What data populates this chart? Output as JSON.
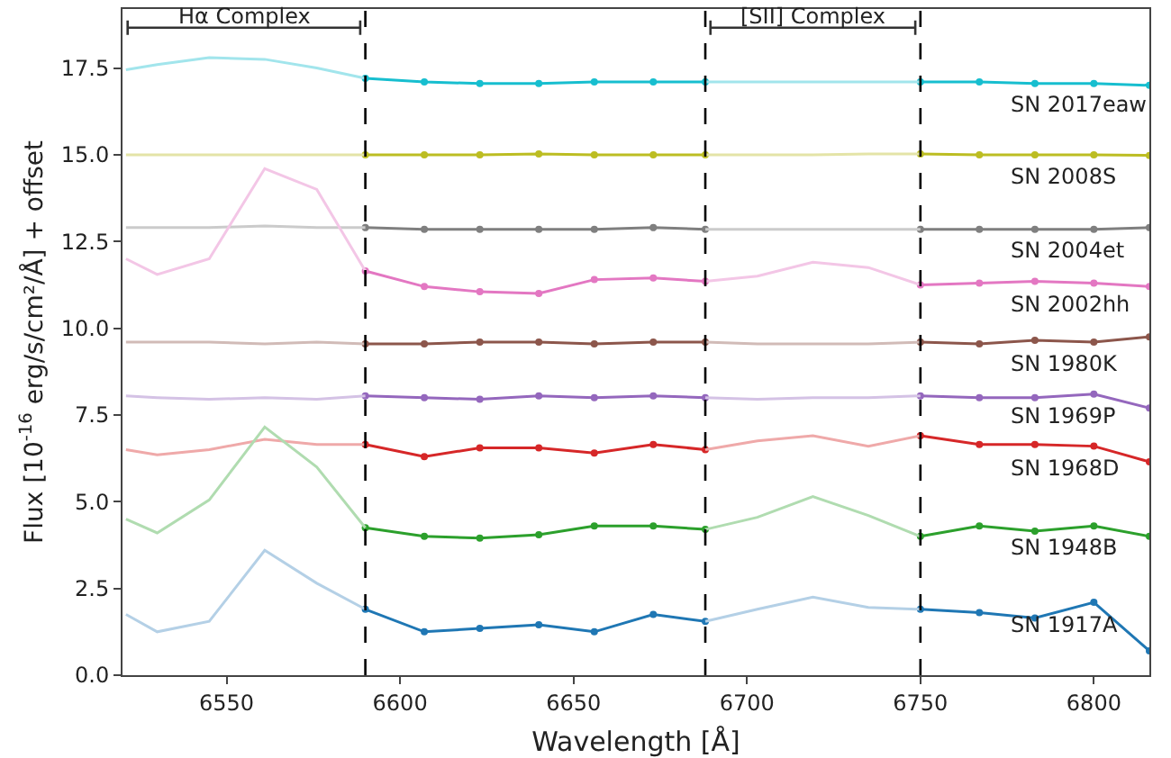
{
  "chart_data": {
    "type": "line",
    "xlabel": "Wavelength [Å]",
    "ylabel": "Flux [10$^{-16}$ erg/s/cm²/Å] + offset",
    "x": [
      6521,
      6530,
      6545,
      6561,
      6576,
      6590,
      6607,
      6623,
      6640,
      6656,
      6673,
      6688,
      6703,
      6719,
      6735,
      6750,
      6767,
      6783,
      6800,
      6816
    ],
    "xlim": [
      6520,
      6816
    ],
    "xticks": [
      6550,
      6600,
      6650,
      6700,
      6750,
      6800
    ],
    "ylim": [
      0,
      19.2
    ],
    "yticks": [
      {
        "value": 0,
        "label": "0.0"
      },
      {
        "value": 2.5,
        "label": "2.5"
      },
      {
        "value": 5,
        "label": "5.0"
      },
      {
        "value": 7.5,
        "label": "7.5"
      },
      {
        "value": 10,
        "label": "10.0"
      },
      {
        "value": 12.5,
        "label": "12.5"
      },
      {
        "value": 15,
        "label": "15.0"
      },
      {
        "value": 17.5,
        "label": "17.5"
      }
    ],
    "grid": false,
    "legend": false,
    "line_style": "solid",
    "series": [
      {
        "name": "SN 2017eaw",
        "color": "#17becf",
        "marker": "circle",
        "values": [
          null,
          null,
          null,
          null,
          null,
          17.2,
          17.1,
          17.05,
          17.05,
          17.1,
          17.1,
          17.1,
          null,
          null,
          null,
          17.1,
          17.1,
          17.05,
          17.05,
          17.0
        ]
      },
      {
        "color": "#a2e5ec",
        "marker": "none",
        "values": [
          17.45,
          17.6,
          17.8,
          17.75,
          17.5,
          17.2,
          null,
          null,
          null,
          null,
          null,
          17.1,
          17.1,
          17.1,
          17.1,
          17.1,
          null,
          null,
          null,
          null
        ]
      },
      {
        "name": "SN 2008S",
        "color": "#bcbd22",
        "marker": "circle",
        "values": [
          null,
          null,
          null,
          null,
          null,
          15.0,
          15.0,
          15.0,
          15.02,
          15.0,
          15.0,
          15.0,
          null,
          null,
          null,
          15.02,
          15.0,
          15.0,
          15.0,
          14.98
        ]
      },
      {
        "color": "#e4e4a7",
        "marker": "none",
        "values": [
          15.0,
          15.0,
          15.0,
          15.0,
          15.0,
          15.0,
          null,
          null,
          null,
          null,
          null,
          15.0,
          15.0,
          15.0,
          15.02,
          15.02,
          null,
          null,
          null,
          null
        ]
      },
      {
        "name": "SN 2004et",
        "color": "#7f7f7f",
        "marker": "circle",
        "values": [
          null,
          null,
          null,
          null,
          null,
          12.9,
          12.85,
          12.85,
          12.85,
          12.85,
          12.9,
          12.85,
          null,
          null,
          null,
          12.85,
          12.85,
          12.85,
          12.85,
          12.9
        ]
      },
      {
        "color": "#cbcbcb",
        "marker": "none",
        "values": [
          12.9,
          12.9,
          12.9,
          12.95,
          12.9,
          12.9,
          null,
          null,
          null,
          null,
          null,
          12.85,
          12.85,
          12.85,
          12.85,
          12.85,
          null,
          null,
          null,
          null
        ]
      },
      {
        "name": "SN 2002hh",
        "color": "#e377c2",
        "marker": "circle",
        "values": [
          null,
          null,
          null,
          null,
          null,
          11.65,
          11.2,
          11.05,
          11.0,
          11.4,
          11.45,
          11.35,
          null,
          null,
          null,
          11.25,
          11.3,
          11.35,
          11.3,
          11.2
        ]
      },
      {
        "color": "#f3c6e6",
        "marker": "none",
        "values": [
          12.0,
          11.55,
          12.0,
          14.6,
          14.0,
          11.65,
          null,
          null,
          null,
          null,
          null,
          11.35,
          11.5,
          11.9,
          11.75,
          11.25,
          null,
          null,
          null,
          null
        ]
      },
      {
        "name": "SN 1980K",
        "color": "#8c564b",
        "marker": "circle",
        "values": [
          null,
          null,
          null,
          null,
          null,
          9.55,
          9.55,
          9.6,
          9.6,
          9.55,
          9.6,
          9.6,
          null,
          null,
          null,
          9.6,
          9.55,
          9.65,
          9.6,
          9.75
        ]
      },
      {
        "color": "#d1bbb7",
        "marker": "none",
        "values": [
          9.6,
          9.6,
          9.6,
          9.55,
          9.6,
          9.55,
          null,
          null,
          null,
          null,
          null,
          9.6,
          9.55,
          9.55,
          9.55,
          9.6,
          null,
          null,
          null,
          null
        ]
      },
      {
        "name": "SN 1969P",
        "color": "#9467bd",
        "marker": "circle",
        "values": [
          null,
          null,
          null,
          null,
          null,
          8.05,
          8.0,
          7.95,
          8.05,
          8.0,
          8.05,
          8.0,
          null,
          null,
          null,
          8.05,
          8.0,
          8.0,
          8.1,
          7.7
        ]
      },
      {
        "color": "#d4c2e5",
        "marker": "none",
        "values": [
          8.05,
          8.0,
          7.95,
          8.0,
          7.95,
          8.05,
          null,
          null,
          null,
          null,
          null,
          8.0,
          7.95,
          8.0,
          8.0,
          8.05,
          null,
          null,
          null,
          null
        ]
      },
      {
        "name": "SN 1968D",
        "color": "#d62728",
        "marker": "circle",
        "values": [
          null,
          null,
          null,
          null,
          null,
          6.65,
          6.3,
          6.55,
          6.55,
          6.4,
          6.65,
          6.5,
          null,
          null,
          null,
          6.9,
          6.65,
          6.65,
          6.6,
          6.15
        ]
      },
      {
        "color": "#efa9a9",
        "marker": "none",
        "values": [
          6.5,
          6.35,
          6.5,
          6.8,
          6.65,
          6.65,
          null,
          null,
          null,
          null,
          null,
          6.5,
          6.75,
          6.9,
          6.6,
          6.9,
          null,
          null,
          null,
          null
        ]
      },
      {
        "name": "SN 1948B",
        "color": "#2ca02c",
        "marker": "circle",
        "values": [
          null,
          null,
          null,
          null,
          null,
          4.25,
          4.0,
          3.95,
          4.05,
          4.3,
          4.3,
          4.2,
          null,
          null,
          null,
          4.0,
          4.3,
          4.15,
          4.3,
          4.0
        ]
      },
      {
        "color": "#b0dcb0",
        "marker": "none",
        "values": [
          4.5,
          4.1,
          5.05,
          7.15,
          6.0,
          4.25,
          null,
          null,
          null,
          null,
          null,
          4.2,
          4.55,
          5.15,
          4.6,
          4.0,
          null,
          null,
          null,
          null
        ]
      },
      {
        "name": "SN 1917A",
        "color": "#1f77b4",
        "marker": "circle",
        "values": [
          null,
          null,
          null,
          null,
          null,
          1.9,
          1.25,
          1.35,
          1.45,
          1.25,
          1.75,
          1.55,
          null,
          null,
          null,
          1.9,
          1.8,
          1.65,
          2.1,
          0.7
        ]
      },
      {
        "color": "#b4d0e6",
        "marker": "none",
        "values": [
          1.75,
          1.25,
          1.55,
          3.6,
          2.65,
          1.9,
          null,
          null,
          null,
          null,
          null,
          1.55,
          1.9,
          2.25,
          1.95,
          1.9,
          null,
          null,
          null,
          null
        ]
      }
    ],
    "ref_lines": [
      {
        "axis": "x",
        "value": 6590,
        "color": "#000000",
        "line_style": "dashed"
      },
      {
        "axis": "x",
        "value": 6688,
        "color": "#000000",
        "line_style": "dashed"
      },
      {
        "axis": "x",
        "value": 6750,
        "color": "#000000",
        "line_style": "dashed"
      }
    ],
    "annotations": [
      "Hα Complex",
      "[SII] Complex"
    ]
  }
}
